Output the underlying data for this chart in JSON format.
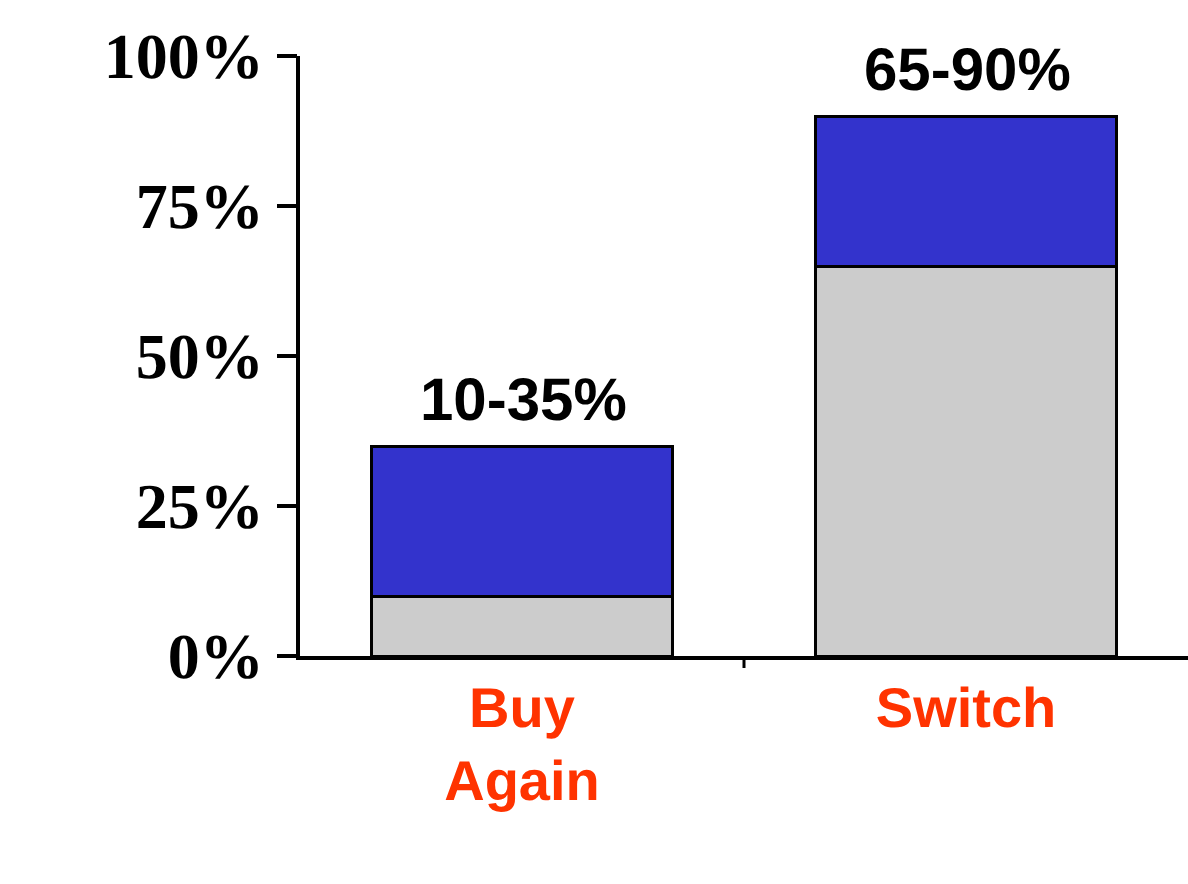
{
  "chart_data": {
    "type": "bar",
    "stacked": true,
    "categories": [
      "Buy Again",
      "Switch"
    ],
    "series": [
      {
        "color": "#cccccc",
        "values": [
          10,
          65
        ]
      },
      {
        "color": "#3333cc",
        "values": [
          25,
          25
        ]
      }
    ],
    "totals": [
      "10-35%",
      "65-90%"
    ],
    "ylim": [
      0,
      100
    ],
    "yticks": [
      {
        "value": 0,
        "label": "0%"
      },
      {
        "value": 25,
        "label": "25%"
      },
      {
        "value": 50,
        "label": "50%"
      },
      {
        "value": 75,
        "label": "75%"
      },
      {
        "value": 100,
        "label": "100%"
      }
    ],
    "legend": false
  }
}
